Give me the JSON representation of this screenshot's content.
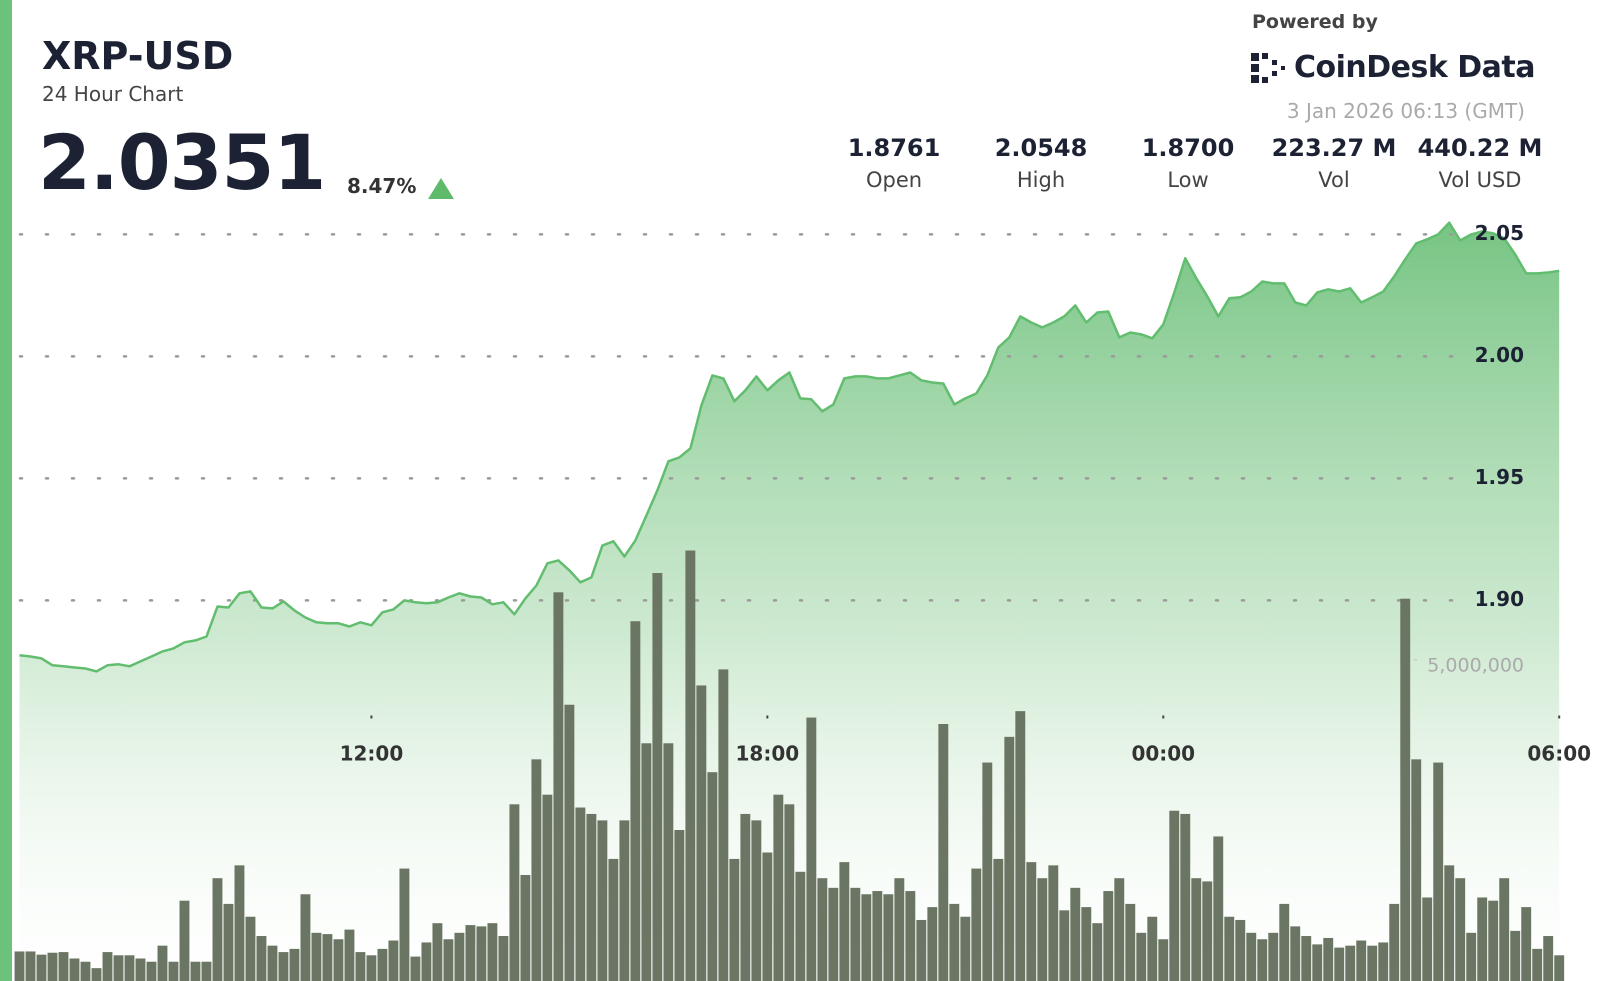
{
  "header": {
    "symbol": "XRP-USD",
    "subtitle": "24 Hour Chart",
    "price": "2.0351",
    "change": "8.47%",
    "powered_by": "Powered by",
    "brand": "CoinDesk Data",
    "timestamp": "3 Jan 2026 06:13 (GMT)",
    "stats": [
      {
        "value": "1.8761",
        "label": "Open"
      },
      {
        "value": "2.0548",
        "label": "High"
      },
      {
        "value": "1.8700",
        "label": "Low"
      },
      {
        "value": "223.27 M",
        "label": "Vol"
      },
      {
        "value": "440.22 M",
        "label": "Vol USD"
      }
    ]
  },
  "chart_data": {
    "type": "line",
    "x": [
      400,
      410,
      420,
      430,
      440,
      450,
      460,
      470,
      480,
      490,
      500,
      510,
      520,
      530,
      540,
      550,
      560,
      570,
      580,
      590,
      600,
      610,
      620,
      630,
      640,
      650,
      660,
      670,
      680,
      690,
      700,
      710,
      720,
      730,
      740,
      750,
      760,
      770,
      780,
      790,
      800,
      810,
      820,
      830,
      840,
      850,
      860,
      870,
      880,
      890,
      900,
      910,
      920,
      930,
      940,
      950,
      960,
      970,
      980,
      990,
      1000,
      1010,
      1020,
      1030,
      1040,
      1050,
      1060,
      1070,
      1080,
      1090,
      1100,
      1110,
      1120,
      1130,
      1140,
      1150,
      1160,
      1170,
      1180,
      1190,
      1200,
      1210,
      1220,
      1230,
      1240,
      1250,
      1260,
      1270,
      1280,
      1290,
      1300,
      1310,
      1320,
      1330,
      1340,
      1350,
      1360,
      1370,
      1380,
      1390,
      1400,
      1410,
      1420,
      1430,
      1440,
      1450,
      1460,
      1470,
      1480,
      1490,
      1500,
      1510,
      1520,
      1530,
      1540,
      1550,
      1560,
      1570,
      1580,
      1590,
      1600,
      1610,
      1620,
      1630,
      1640,
      1650,
      1660,
      1670,
      1680,
      1690,
      1700,
      1710,
      1720,
      1730,
      1740,
      1750,
      1760,
      1770,
      1780,
      1790,
      1800
    ],
    "series": [
      {
        "type": "line",
        "color": "#62bd6f",
        "values": [
          1.8775,
          1.877,
          1.8762,
          1.8734,
          1.873,
          1.8725,
          1.8721,
          1.8709,
          1.8734,
          1.8738,
          1.873,
          1.875,
          1.877,
          1.8791,
          1.8803,
          1.8828,
          1.8836,
          1.8852,
          1.8975,
          1.8971,
          1.9029,
          1.9037,
          1.8971,
          1.8967,
          1.8996,
          1.8959,
          1.893,
          1.891,
          1.8906,
          1.8906,
          1.8893,
          1.891,
          1.8898,
          1.8951,
          1.8963,
          1.9,
          1.8992,
          1.8988,
          1.8992,
          1.9012,
          1.9029,
          1.9016,
          1.9012,
          1.8984,
          1.8992,
          1.8943,
          1.9008,
          1.9061,
          1.9152,
          1.9164,
          1.9123,
          1.9074,
          1.9094,
          1.9225,
          1.9242,
          1.918,
          1.9246,
          1.9348,
          1.9451,
          1.957,
          1.9586,
          1.9623,
          1.9799,
          1.9922,
          1.991,
          1.9816,
          1.9861,
          1.9918,
          1.9861,
          1.9902,
          1.9934,
          1.9828,
          1.9824,
          1.9775,
          1.9803,
          1.991,
          1.9918,
          1.9918,
          1.991,
          1.991,
          1.9922,
          1.9934,
          1.9902,
          1.9893,
          1.9889,
          1.9803,
          1.9828,
          1.9848,
          1.9922,
          2.0037,
          2.0078,
          2.0164,
          2.0139,
          2.0119,
          2.0139,
          2.0164,
          2.0209,
          2.0139,
          2.018,
          2.0184,
          2.0078,
          2.0098,
          2.009,
          2.0074,
          2.0131,
          2.0262,
          2.0402,
          2.032,
          2.0246,
          2.0164,
          2.0238,
          2.0242,
          2.0266,
          2.0307,
          2.0299,
          2.0299,
          2.0221,
          2.0209,
          2.0262,
          2.0275,
          2.0266,
          2.0279,
          2.0221,
          2.0242,
          2.0266,
          2.0328,
          2.0398,
          2.0463,
          2.048,
          2.05,
          2.0548,
          2.0475,
          2.05,
          2.0512,
          2.0504,
          2.0484,
          2.0418,
          2.034,
          2.034,
          2.0344,
          2.0351
        ]
      },
      {
        "type": "bar",
        "axis": "y2",
        "color": "#6b7563",
        "values": [
          460000,
          460000,
          410000,
          440000,
          450000,
          350000,
          300000,
          200000,
          450000,
          400000,
          400000,
          350000,
          300000,
          550000,
          300000,
          1250000,
          300000,
          300000,
          1600000,
          1200000,
          1800000,
          1000000,
          700000,
          550000,
          450000,
          500000,
          1350000,
          750000,
          730000,
          650000,
          800000,
          450000,
          400000,
          500000,
          630000,
          1750000,
          380000,
          600000,
          900000,
          650000,
          750000,
          870000,
          850000,
          900000,
          700000,
          2750000,
          1650000,
          3450000,
          2900000,
          6050000,
          4300000,
          2700000,
          2600000,
          2500000,
          1900000,
          2500000,
          5600000,
          3700000,
          6350000,
          3700000,
          2350000,
          6700000,
          4600000,
          3250000,
          4850000,
          1900000,
          2600000,
          2500000,
          2000000,
          2900000,
          2750000,
          1700000,
          4100000,
          1600000,
          1450000,
          1850000,
          1450000,
          1350000,
          1400000,
          1350000,
          1600000,
          1400000,
          950000,
          1150000,
          4000000,
          1200000,
          1000000,
          1750000,
          3400000,
          1900000,
          3800000,
          4200000,
          1850000,
          1600000,
          1800000,
          1100000,
          1450000,
          1150000,
          900000,
          1400000,
          1600000,
          1200000,
          750000,
          1000000,
          650000,
          2650000,
          2600000,
          1600000,
          1550000,
          2250000,
          1000000,
          950000,
          750000,
          650000,
          750000,
          1200000,
          850000,
          700000,
          570000,
          670000,
          520000,
          550000,
          630000,
          550000,
          600000,
          1200000,
          5950000,
          3450000,
          1300000,
          3400000,
          1800000,
          1600000,
          750000,
          1300000,
          1250000,
          1600000,
          780000,
          1150000,
          500000,
          700000,
          400000
        ]
      }
    ],
    "xlim": [
      395,
      1808
    ],
    "xticks": [
      {
        "value": 720,
        "label": "12:00"
      },
      {
        "value": 1080,
        "label": "18:00"
      },
      {
        "value": 1440,
        "label": "00:00"
      },
      {
        "value": 1800,
        "label": "06:00"
      }
    ],
    "ylim": [
      1.744,
      2.06
    ],
    "yticks": [
      {
        "value": 1.9,
        "label": "1.90"
      },
      {
        "value": 1.95,
        "label": "1.95"
      },
      {
        "value": 2,
        "label": "2.00"
      },
      {
        "value": 2.05,
        "label": "2.05"
      }
    ],
    "y2lim": [
      0,
      12000000
    ],
    "y2ticks": [
      {
        "value": 5000000,
        "label": "5,000,000"
      }
    ],
    "grid": true
  }
}
